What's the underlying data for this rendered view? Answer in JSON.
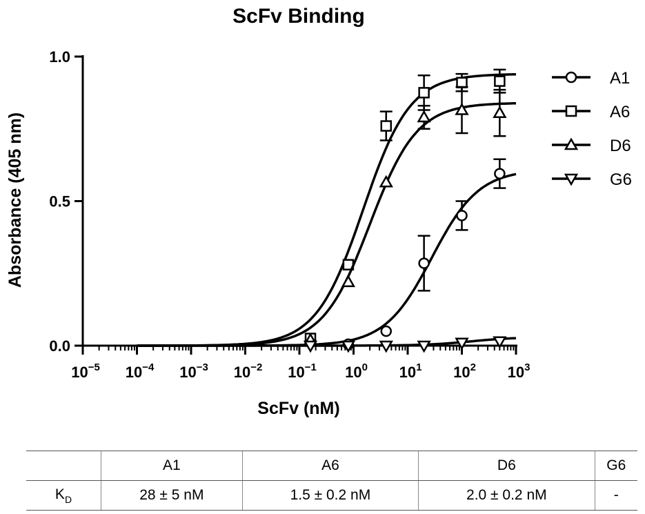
{
  "chart_data": {
    "type": "scatter",
    "title": "ScFv Binding",
    "xlabel": "ScFv (nM)",
    "ylabel": "Absorbance (405 nm)",
    "xscale": "log",
    "xlim": [
      1e-05,
      1000
    ],
    "ylim": [
      0,
      1.0
    ],
    "x_ticks": [
      {
        "base": "10",
        "exp": "−5"
      },
      {
        "base": "10",
        "exp": "−4"
      },
      {
        "base": "10",
        "exp": "−3"
      },
      {
        "base": "10",
        "exp": "−2"
      },
      {
        "base": "10",
        "exp": "−1"
      },
      {
        "base": "10",
        "exp": "0"
      },
      {
        "base": "10",
        "exp": "1"
      },
      {
        "base": "10",
        "exp": "2"
      },
      {
        "base": "10",
        "exp": "3"
      }
    ],
    "y_ticks": [
      "0.0",
      "0.5",
      "1.0"
    ],
    "y_tick_values": [
      0,
      0.5,
      1.0
    ],
    "legend_position": "top-right",
    "series": [
      {
        "name": "A1",
        "marker": "circle",
        "x": [
          0.16,
          0.8,
          4,
          20,
          100,
          500
        ],
        "y": [
          0.02,
          0.005,
          0.05,
          0.285,
          0.45,
          0.595
        ],
        "err": [
          0,
          0,
          0,
          0.095,
          0.05,
          0.05
        ],
        "fit": {
          "bottom": 0.0,
          "top": 0.61,
          "ec50": 28,
          "hill": 1.0
        }
      },
      {
        "name": "A6",
        "marker": "square",
        "x": [
          0.16,
          0.8,
          4,
          20,
          100,
          500
        ],
        "y": [
          0.025,
          0.28,
          0.76,
          0.875,
          0.91,
          0.915
        ],
        "err": [
          0,
          0,
          0.05,
          0.06,
          0.03,
          0.04
        ],
        "fit": {
          "bottom": 0.0,
          "top": 0.94,
          "ec50": 1.5,
          "hill": 1.0
        }
      },
      {
        "name": "D6",
        "marker": "triangle-up",
        "x": [
          0.16,
          0.8,
          4,
          20,
          100,
          500
        ],
        "y": [
          0.02,
          0.22,
          0.565,
          0.79,
          0.815,
          0.805
        ],
        "err": [
          0,
          0,
          0,
          0.04,
          0.08,
          0.08
        ],
        "fit": {
          "bottom": 0.0,
          "top": 0.84,
          "ec50": 2.0,
          "hill": 1.0
        }
      },
      {
        "name": "G6",
        "marker": "triangle-down",
        "x": [
          0.16,
          0.8,
          4,
          20,
          100,
          500
        ],
        "y": [
          0.0,
          0.0,
          0.0,
          0.0,
          0.01,
          0.015
        ],
        "err": [
          0,
          0,
          0,
          0,
          0,
          0
        ],
        "fit": {
          "bottom": 0.0,
          "top": 0.03,
          "ec50": 150,
          "hill": 1.0
        }
      }
    ]
  },
  "kd_table": {
    "row_label_main": "K",
    "row_label_sub": "D",
    "headers": [
      "A1",
      "A6",
      "D6",
      "G6"
    ],
    "values": [
      "28 ± 5 nM",
      "1.5 ± 0.2 nM",
      "2.0 ± 0.2 nM",
      "-"
    ]
  }
}
